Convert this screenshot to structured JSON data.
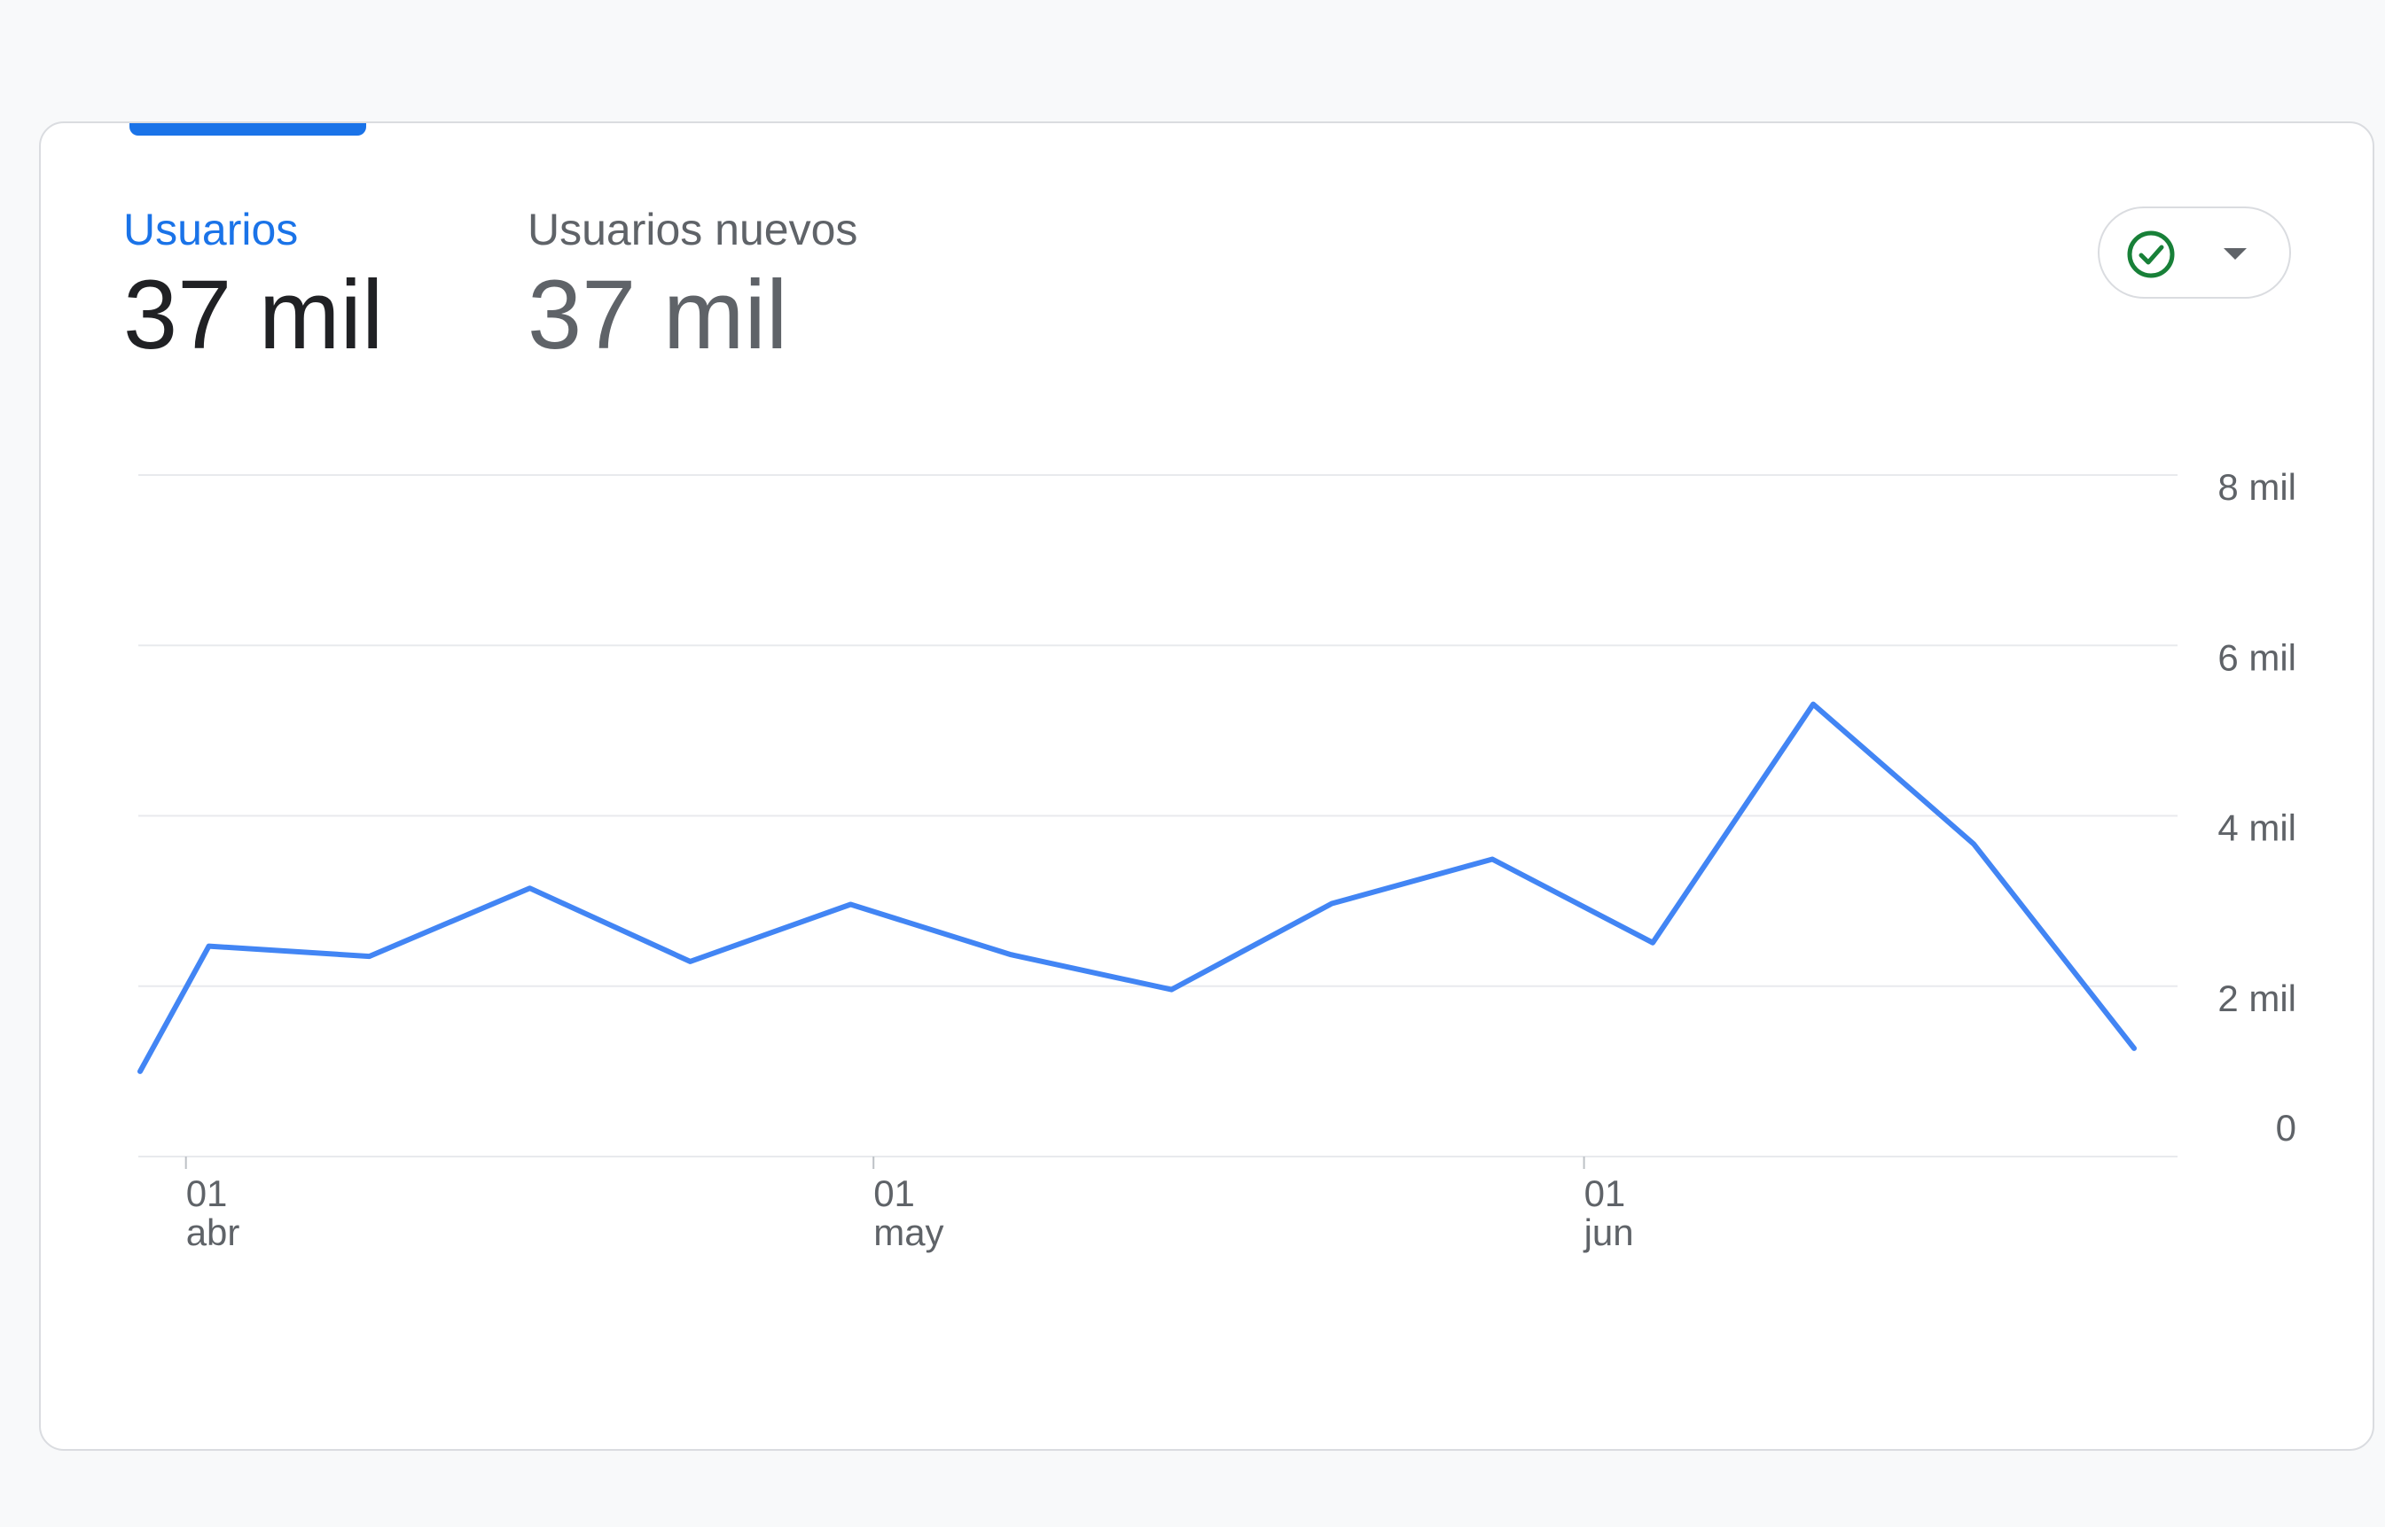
{
  "metrics": {
    "users": {
      "label": "Usuarios",
      "value": "37 mil"
    },
    "new_users": {
      "label": "Usuarios nuevos",
      "value": "37 mil"
    }
  },
  "status_button": {
    "icon": "check-circle-icon",
    "dropdown_icon": "caret-down-icon"
  },
  "colors": {
    "accent": "#1a73e8",
    "line": "#4285f4",
    "check": "#188038",
    "text_primary": "#202124",
    "text_secondary": "#5f6368",
    "grid": "#e8eaed"
  },
  "chart_data": {
    "type": "line",
    "x": [
      "2023-03-30",
      "2023-04-02",
      "2023-04-09",
      "2023-04-16",
      "2023-04-23",
      "2023-04-30",
      "2023-05-07",
      "2023-05-14",
      "2023-05-21",
      "2023-05-28",
      "2023-06-04",
      "2023-06-11",
      "2023-06-18",
      "2023-06-25"
    ],
    "series": [
      {
        "values": [
          1000,
          2470,
          2350,
          3150,
          2290,
          2960,
          2370,
          1960,
          2970,
          3490,
          2510,
          5310,
          3670,
          1270
        ]
      }
    ],
    "ylim": [
      0,
      8000
    ],
    "yticks": [
      0,
      2000,
      4000,
      6000,
      8000
    ],
    "ytick_labels": [
      "0",
      "2 mil",
      "4 mil",
      "6 mil",
      "8 mil"
    ],
    "xticks": [
      "2023-04-01",
      "2023-05-01",
      "2023-06-01"
    ],
    "xtick_labels": [
      {
        "day": "01",
        "month": "abr"
      },
      {
        "day": "01",
        "month": "may"
      },
      {
        "day": "01",
        "month": "jun"
      }
    ],
    "grid": true,
    "y_axis_position": "right",
    "legend": "none"
  }
}
